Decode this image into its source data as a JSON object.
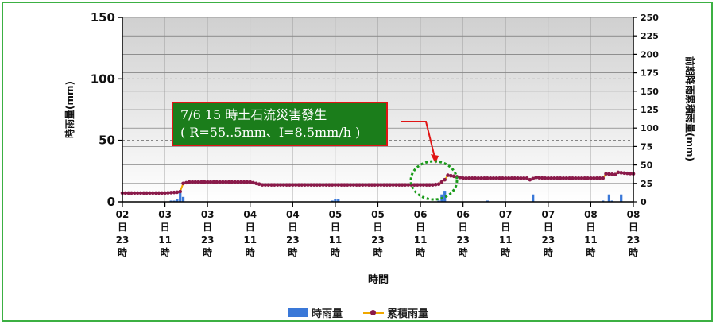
{
  "chart_data": {
    "type": "bar+line",
    "xlabel": "時間",
    "ylabel_left": "時雨量(mm)",
    "ylabel_right": "前期降雨累積雨量(mm)",
    "ylim_left": [
      0,
      150
    ],
    "yticks_left": [
      0,
      50,
      100,
      150
    ],
    "ylim_right": [
      0,
      250
    ],
    "yticks_right": [
      0,
      25,
      50,
      75,
      100,
      125,
      150,
      175,
      200,
      225,
      250
    ],
    "x_ticks": [
      {
        "day": "02",
        "mid": "日",
        "hour": "23",
        "suffix": "時"
      },
      {
        "day": "03",
        "mid": "日",
        "hour": "11",
        "suffix": "時"
      },
      {
        "day": "03",
        "mid": "日",
        "hour": "23",
        "suffix": "時"
      },
      {
        "day": "04",
        "mid": "日",
        "hour": "11",
        "suffix": "時"
      },
      {
        "day": "04",
        "mid": "日",
        "hour": "23",
        "suffix": "時"
      },
      {
        "day": "05",
        "mid": "日",
        "hour": "11",
        "suffix": "時"
      },
      {
        "day": "05",
        "mid": "日",
        "hour": "23",
        "suffix": "時"
      },
      {
        "day": "06",
        "mid": "日",
        "hour": "11",
        "suffix": "時"
      },
      {
        "day": "06",
        "mid": "日",
        "hour": "23",
        "suffix": "時"
      },
      {
        "day": "07",
        "mid": "日",
        "hour": "11",
        "suffix": "時"
      },
      {
        "day": "07",
        "mid": "日",
        "hour": "23",
        "suffix": "時"
      },
      {
        "day": "08",
        "mid": "日",
        "hour": "11",
        "suffix": "時"
      },
      {
        "day": "08",
        "mid": "日",
        "hour": "23",
        "suffix": "時"
      }
    ],
    "series": [
      {
        "name": "時雨量",
        "type": "bar",
        "axis": "left",
        "color": "#3a78d8",
        "points": [
          [
            16,
            1
          ],
          [
            17,
            1
          ],
          [
            18,
            2
          ],
          [
            19,
            9
          ],
          [
            20,
            4
          ],
          [
            69,
            1
          ],
          [
            70,
            2
          ],
          [
            71,
            2
          ],
          [
            104,
            1
          ],
          [
            105,
            6
          ],
          [
            106,
            9
          ],
          [
            120,
            1
          ],
          [
            135,
            6
          ],
          [
            158,
            1
          ],
          [
            160,
            6
          ],
          [
            161,
            1
          ],
          [
            164,
            6
          ]
        ]
      },
      {
        "name": "累積雨量",
        "type": "line",
        "axis": "right",
        "color": "#f0a800",
        "marker_color": "#8a1a4a",
        "points": [
          [
            0,
            12
          ],
          [
            14,
            12
          ],
          [
            18,
            13
          ],
          [
            19,
            14
          ],
          [
            20,
            25
          ],
          [
            22,
            27
          ],
          [
            42,
            27
          ],
          [
            44,
            25
          ],
          [
            46,
            23
          ],
          [
            90,
            23
          ],
          [
            102,
            23
          ],
          [
            104,
            24
          ],
          [
            106,
            30
          ],
          [
            107,
            36
          ],
          [
            110,
            34
          ],
          [
            112,
            32
          ],
          [
            133,
            32
          ],
          [
            134,
            30
          ],
          [
            136,
            33
          ],
          [
            139,
            32
          ],
          [
            158,
            32
          ],
          [
            159,
            38
          ],
          [
            162,
            37
          ],
          [
            163,
            40
          ],
          [
            165,
            39
          ],
          [
            168,
            38
          ]
        ]
      }
    ],
    "annotations": [
      {
        "text_line1": "7/6 15 時土石流災害發生",
        "text_line2": "( R=55..5mm、I=8.5mm/h )"
      }
    ],
    "grid": true,
    "legend": "bottom-center"
  }
}
